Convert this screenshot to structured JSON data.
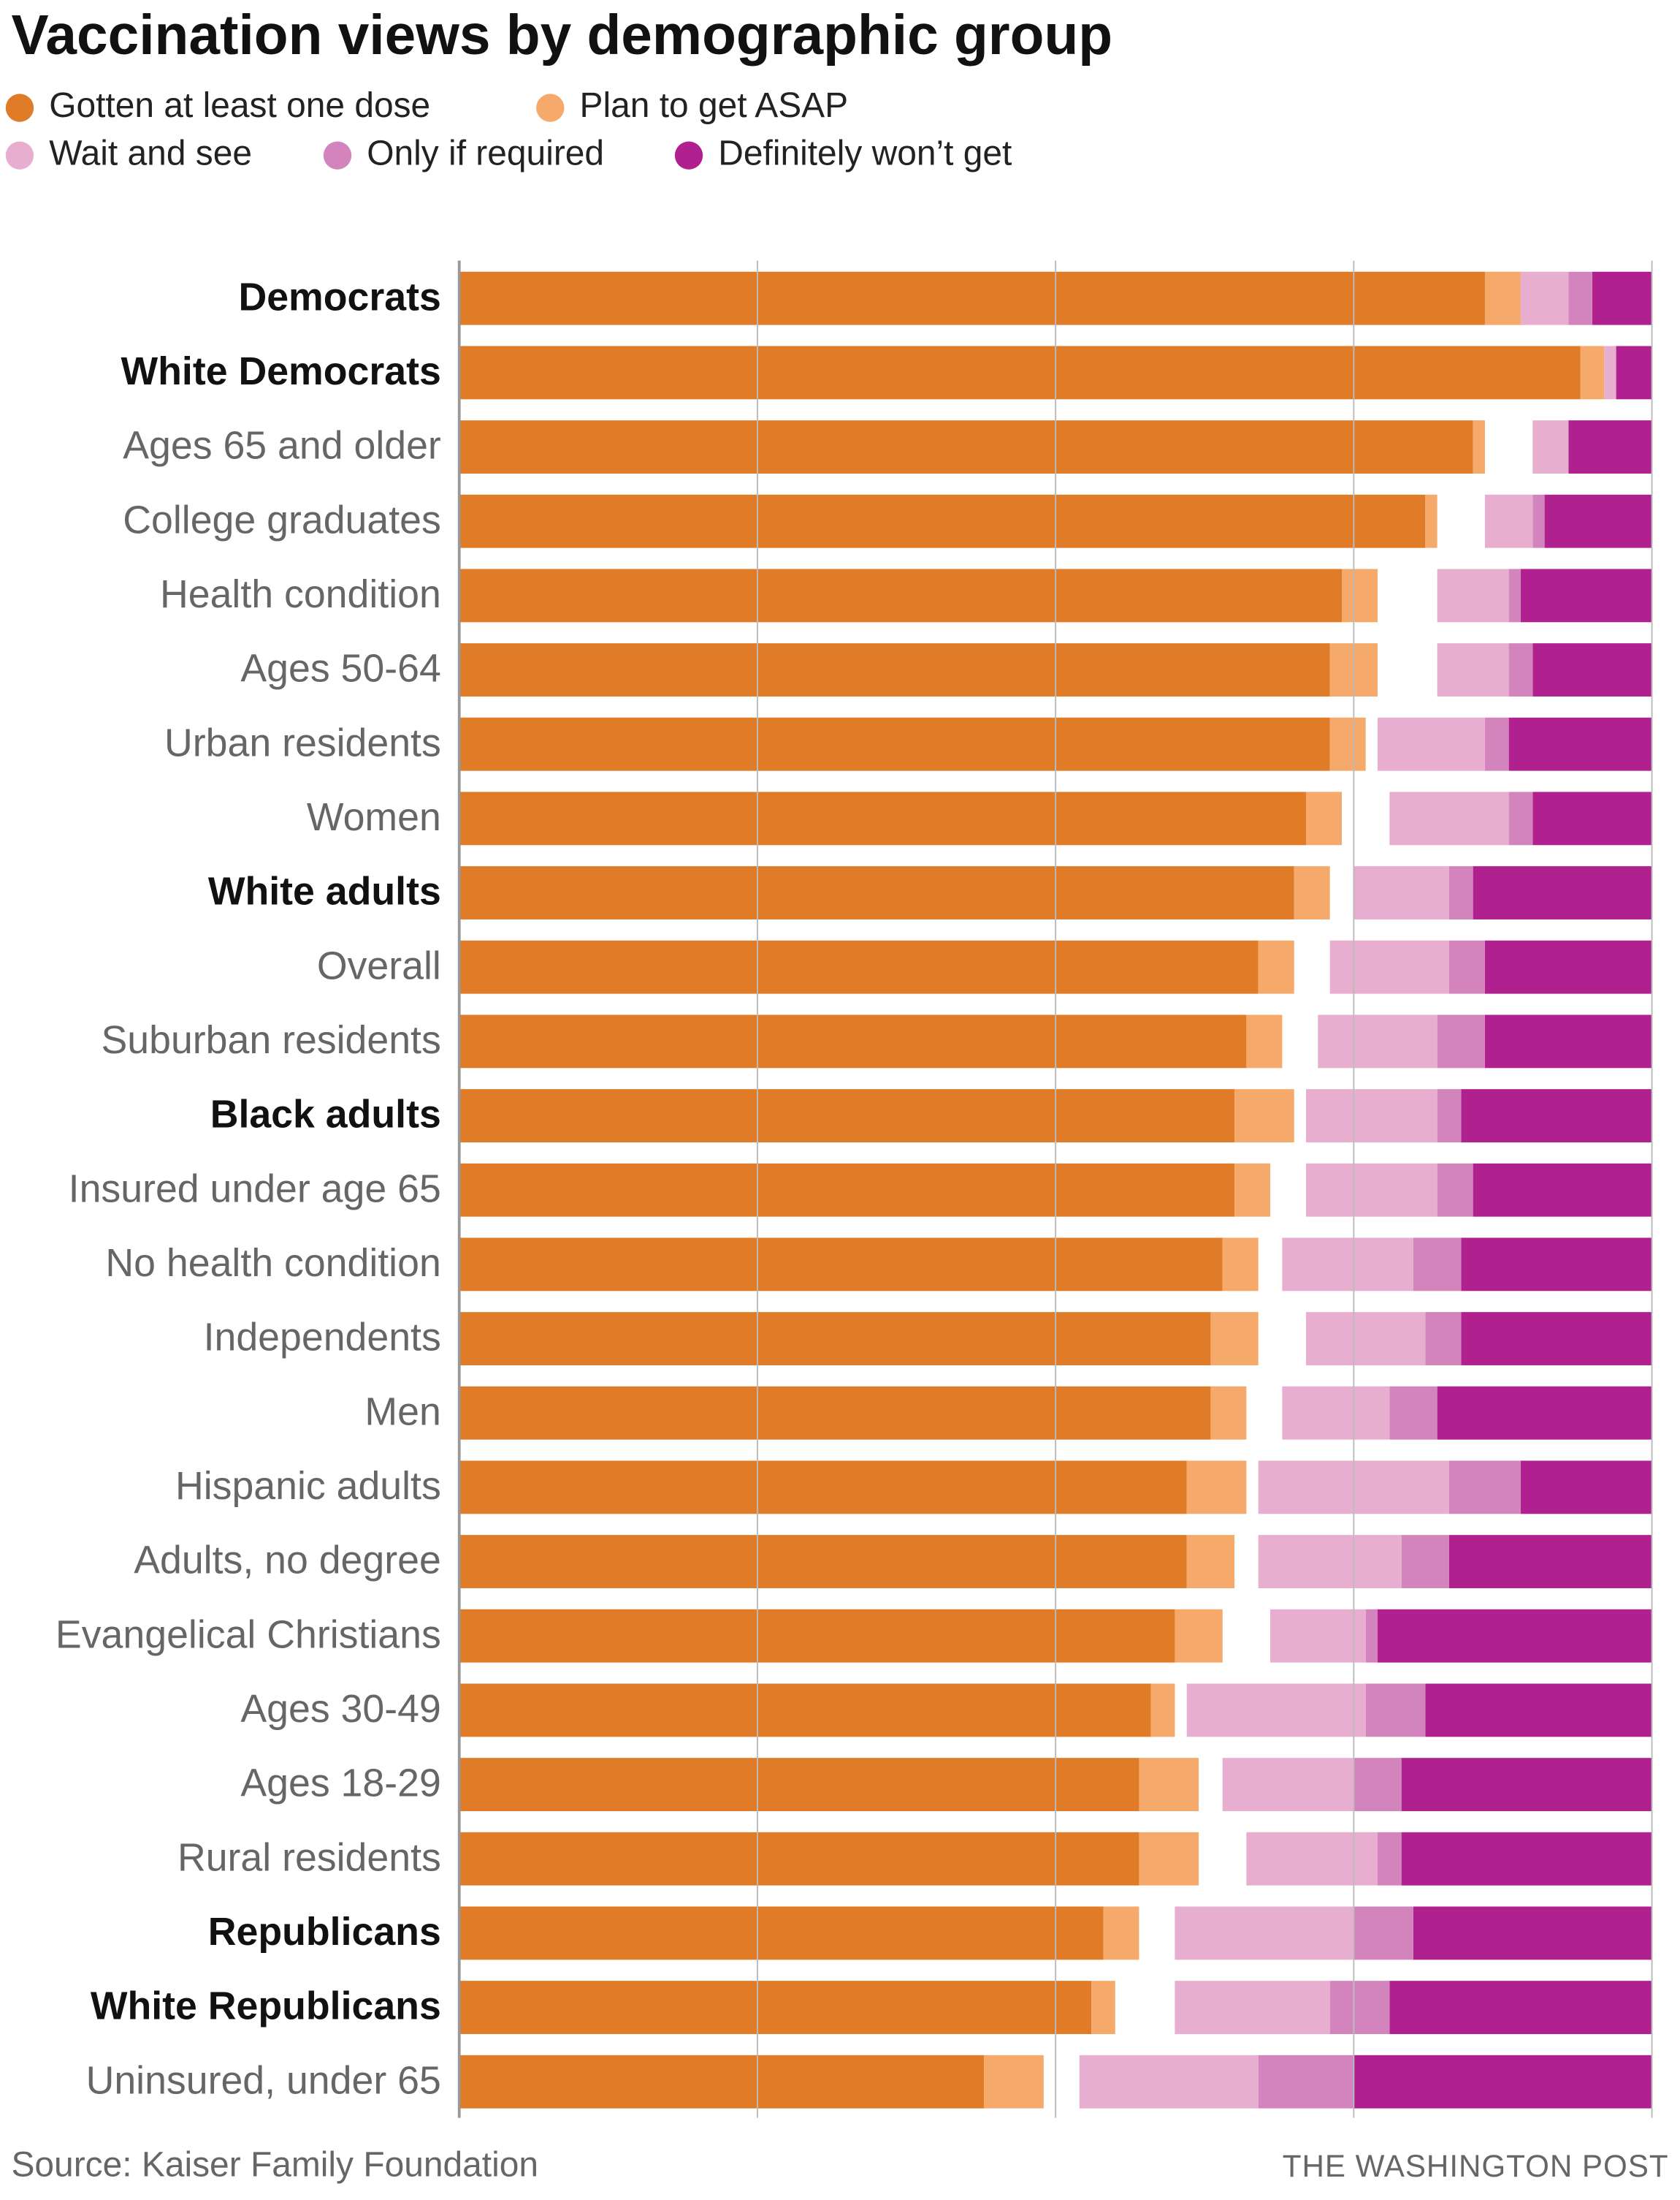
{
  "chart_data": {
    "type": "bar",
    "orientation": "horizontal",
    "stacked": true,
    "title": "Vaccination views by demographic group",
    "source": "Source: Kaiser Family Foundation",
    "credit": "THE WASHINGTON POST",
    "categories": [
      "Democrats",
      "White Democrats",
      "Ages 65 and older",
      "College graduates",
      "Health condition",
      "Ages 50-64",
      "Urban residents",
      "Women",
      "White adults",
      "Overall",
      "Suburban residents",
      "Black adults",
      "Insured under age 65",
      "No health condition",
      "Independents",
      "Men",
      "Hispanic adults",
      "Adults, no degree",
      "Evangelical Christians",
      "Ages 30-49",
      "Ages 18-29",
      "Rural residents",
      "Republicans",
      "White Republicans",
      "Uninsured, under 65"
    ],
    "bold_categories": [
      0,
      1,
      8,
      11,
      22,
      23
    ],
    "series": [
      {
        "name": "Gotten at least one dose",
        "color": "#e07b28",
        "align": "left",
        "values": [
          86,
          94,
          85,
          81,
          74,
          73,
          73,
          71,
          70,
          67,
          66,
          65,
          65,
          64,
          63,
          63,
          61,
          61,
          60,
          58,
          57,
          57,
          54,
          53,
          44
        ]
      },
      {
        "name": "Plan to get ASAP",
        "color": "#f5a96a",
        "align": "left",
        "values": [
          3,
          2,
          1,
          1,
          3,
          4,
          3,
          3,
          3,
          3,
          3,
          5,
          3,
          3,
          4,
          3,
          5,
          4,
          4,
          2,
          5,
          5,
          3,
          2,
          5
        ]
      },
      {
        "name": "Wait and see",
        "color": "#e8aed0",
        "align": "right",
        "values": [
          4,
          1,
          3,
          4,
          6,
          6,
          9,
          10,
          8,
          10,
          10,
          11,
          11,
          11,
          10,
          9,
          16,
          12,
          8,
          15,
          11,
          11,
          15,
          13,
          15
        ]
      },
      {
        "name": "Only if required",
        "color": "#d384bc",
        "align": "right",
        "values": [
          2,
          0,
          0,
          1,
          1,
          2,
          2,
          2,
          2,
          3,
          4,
          2,
          3,
          4,
          3,
          4,
          6,
          4,
          1,
          5,
          4,
          2,
          5,
          5,
          8
        ]
      },
      {
        "name": "Definitely won’t get",
        "color": "#b0218f",
        "align": "right",
        "values": [
          5,
          3,
          7,
          9,
          11,
          10,
          12,
          10,
          15,
          14,
          14,
          16,
          15,
          16,
          16,
          18,
          11,
          17,
          23,
          19,
          21,
          21,
          20,
          22,
          25
        ]
      }
    ],
    "xlim": [
      0,
      100
    ],
    "xticks": [
      0,
      25,
      50,
      75,
      100
    ],
    "grid": true
  }
}
